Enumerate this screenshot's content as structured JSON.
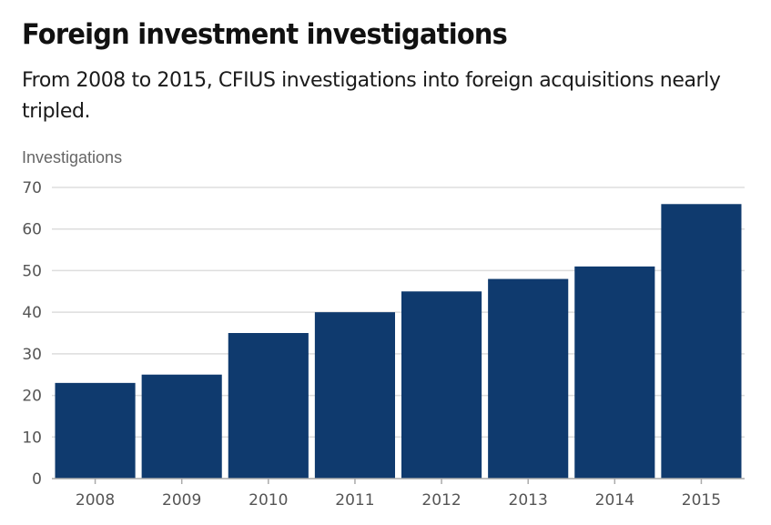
{
  "header": {
    "title": "Foreign investment investigations",
    "subtitle": "From 2008 to 2015, CFIUS investigations into foreign acquisitions nearly tripled."
  },
  "colors": {
    "bar": "#0f3a6e",
    "grid": "#dddddd",
    "axis": "#aaaaaa",
    "text": "#555555"
  },
  "chart_data": {
    "type": "bar",
    "title": "Foreign investment investigations",
    "subtitle": "From 2008 to 2015, CFIUS investigations into foreign acquisitions nearly tripled.",
    "xlabel": "",
    "ylabel": "Investigations",
    "categories": [
      "2008",
      "2009",
      "2010",
      "2011",
      "2012",
      "2013",
      "2014",
      "2015"
    ],
    "values": [
      23,
      25,
      35,
      40,
      45,
      48,
      51,
      66
    ],
    "ylim": [
      0,
      70
    ],
    "yticks": [
      0,
      10,
      20,
      30,
      40,
      50,
      60,
      70
    ],
    "grid": true,
    "legend": "none"
  }
}
